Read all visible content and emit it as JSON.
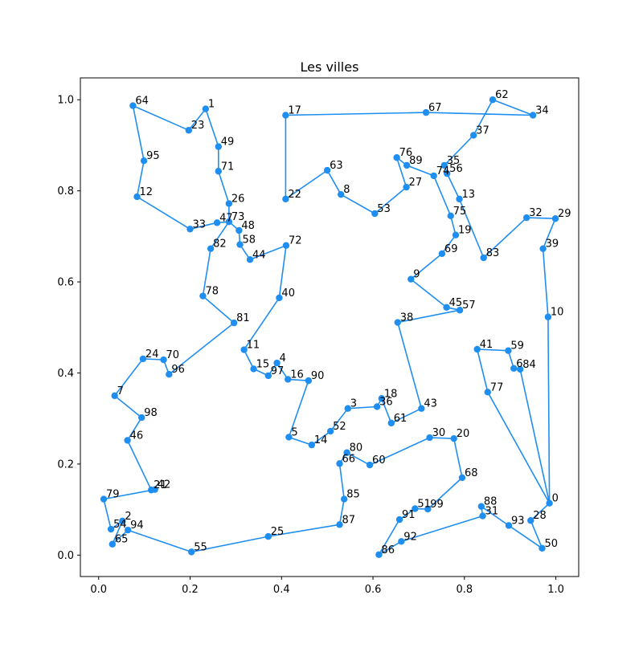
{
  "chart_data": {
    "type": "scatter",
    "title": "Les villes",
    "xlabel": "",
    "ylabel": "",
    "xlim": [
      -0.04,
      1.05
    ],
    "ylim": [
      -0.047,
      1.048
    ],
    "xticks": [
      0.0,
      0.2,
      0.4,
      0.6,
      0.8,
      1.0
    ],
    "yticks": [
      0.0,
      0.2,
      0.4,
      0.6,
      0.8,
      1.0
    ],
    "xtick_labels": [
      "0.0",
      "0.2",
      "0.4",
      "0.6",
      "0.8",
      "1.0"
    ],
    "ytick_labels": [
      "0.0",
      "0.2",
      "0.4",
      "0.6",
      "0.8",
      "1.0"
    ],
    "grid": false,
    "color": "#1f8ef1",
    "points": [
      {
        "id": "0",
        "x": 0.986,
        "y": 0.114
      },
      {
        "id": "1",
        "x": 0.234,
        "y": 0.98
      },
      {
        "id": "2",
        "x": 0.052,
        "y": 0.075
      },
      {
        "id": "4",
        "x": 0.39,
        "y": 0.422
      },
      {
        "id": "5",
        "x": 0.416,
        "y": 0.259
      },
      {
        "id": "6",
        "x": 0.908,
        "y": 0.41
      },
      {
        "id": "7",
        "x": 0.035,
        "y": 0.35
      },
      {
        "id": "8",
        "x": 0.53,
        "y": 0.792
      },
      {
        "id": "9",
        "x": 0.683,
        "y": 0.606
      },
      {
        "id": "10",
        "x": 0.983,
        "y": 0.523
      },
      {
        "id": "11",
        "x": 0.318,
        "y": 0.451
      },
      {
        "id": "12",
        "x": 0.084,
        "y": 0.787
      },
      {
        "id": "13",
        "x": 0.789,
        "y": 0.782
      },
      {
        "id": "14",
        "x": 0.466,
        "y": 0.242
      },
      {
        "id": "15",
        "x": 0.339,
        "y": 0.409
      },
      {
        "id": "16",
        "x": 0.414,
        "y": 0.386
      },
      {
        "id": "17",
        "x": 0.409,
        "y": 0.966
      },
      {
        "id": "18",
        "x": 0.619,
        "y": 0.344
      },
      {
        "id": "19",
        "x": 0.781,
        "y": 0.703
      },
      {
        "id": "20",
        "x": 0.777,
        "y": 0.256
      },
      {
        "id": "21",
        "x": 0.115,
        "y": 0.143
      },
      {
        "id": "22",
        "x": 0.409,
        "y": 0.782
      },
      {
        "id": "23",
        "x": 0.197,
        "y": 0.933
      },
      {
        "id": "24",
        "x": 0.097,
        "y": 0.431
      },
      {
        "id": "25",
        "x": 0.371,
        "y": 0.041
      },
      {
        "id": "26",
        "x": 0.285,
        "y": 0.772
      },
      {
        "id": "27",
        "x": 0.673,
        "y": 0.808
      },
      {
        "id": "28",
        "x": 0.945,
        "y": 0.076
      },
      {
        "id": "29",
        "x": 0.999,
        "y": 0.739
      },
      {
        "id": "30",
        "x": 0.724,
        "y": 0.258
      },
      {
        "id": "31",
        "x": 0.84,
        "y": 0.086
      },
      {
        "id": "32",
        "x": 0.936,
        "y": 0.741
      },
      {
        "id": "33",
        "x": 0.2,
        "y": 0.716
      },
      {
        "id": "34",
        "x": 0.95,
        "y": 0.966
      },
      {
        "id": "35",
        "x": 0.756,
        "y": 0.856
      },
      {
        "id": "36",
        "x": 0.609,
        "y": 0.326
      },
      {
        "id": "37",
        "x": 0.82,
        "y": 0.922
      },
      {
        "id": "38",
        "x": 0.654,
        "y": 0.511
      },
      {
        "id": "39",
        "x": 0.972,
        "y": 0.673
      },
      {
        "id": "40",
        "x": 0.395,
        "y": 0.565
      },
      {
        "id": "41",
        "x": 0.828,
        "y": 0.452
      },
      {
        "id": "42",
        "x": 0.123,
        "y": 0.144
      },
      {
        "id": "43",
        "x": 0.706,
        "y": 0.322
      },
      {
        "id": "44",
        "x": 0.331,
        "y": 0.649
      },
      {
        "id": "45",
        "x": 0.761,
        "y": 0.544
      },
      {
        "id": "46",
        "x": 0.063,
        "y": 0.252
      },
      {
        "id": "47",
        "x": 0.259,
        "y": 0.73
      },
      {
        "id": "48",
        "x": 0.307,
        "y": 0.713
      },
      {
        "id": "49",
        "x": 0.262,
        "y": 0.897
      },
      {
        "id": "50",
        "x": 0.97,
        "y": 0.015
      },
      {
        "id": "51",
        "x": 0.692,
        "y": 0.102
      },
      {
        "id": "52",
        "x": 0.507,
        "y": 0.272
      },
      {
        "id": "53",
        "x": 0.604,
        "y": 0.75
      },
      {
        "id": "54",
        "x": 0.027,
        "y": 0.057
      },
      {
        "id": "55",
        "x": 0.203,
        "y": 0.007
      },
      {
        "id": "56",
        "x": 0.762,
        "y": 0.838
      },
      {
        "id": "57",
        "x": 0.79,
        "y": 0.538
      },
      {
        "id": "58",
        "x": 0.309,
        "y": 0.682
      },
      {
        "id": "59",
        "x": 0.896,
        "y": 0.449
      },
      {
        "id": "60",
        "x": 0.593,
        "y": 0.198
      },
      {
        "id": "61",
        "x": 0.64,
        "y": 0.29
      },
      {
        "id": "62",
        "x": 0.862,
        "y": 1.0
      },
      {
        "id": "63",
        "x": 0.5,
        "y": 0.845
      },
      {
        "id": "64",
        "x": 0.075,
        "y": 0.987
      },
      {
        "id": "65",
        "x": 0.03,
        "y": 0.024
      },
      {
        "id": "66",
        "x": 0.527,
        "y": 0.201
      },
      {
        "id": "67",
        "x": 0.716,
        "y": 0.972
      },
      {
        "id": "68",
        "x": 0.795,
        "y": 0.17
      },
      {
        "id": "69",
        "x": 0.751,
        "y": 0.662
      },
      {
        "id": "70",
        "x": 0.142,
        "y": 0.429
      },
      {
        "id": "71",
        "x": 0.262,
        "y": 0.843
      },
      {
        "id": "72",
        "x": 0.41,
        "y": 0.68
      },
      {
        "id": "73",
        "x": 0.285,
        "y": 0.732
      },
      {
        "id": "74",
        "x": 0.733,
        "y": 0.833
      },
      {
        "id": "75",
        "x": 0.77,
        "y": 0.745
      },
      {
        "id": "76",
        "x": 0.652,
        "y": 0.873
      },
      {
        "id": "77",
        "x": 0.851,
        "y": 0.358
      },
      {
        "id": "78",
        "x": 0.228,
        "y": 0.569
      },
      {
        "id": "79",
        "x": 0.011,
        "y": 0.123
      },
      {
        "id": "80",
        "x": 0.543,
        "y": 0.225
      },
      {
        "id": "81",
        "x": 0.296,
        "y": 0.51
      },
      {
        "id": "82",
        "x": 0.245,
        "y": 0.673
      },
      {
        "id": "83",
        "x": 0.842,
        "y": 0.653
      },
      {
        "id": "84",
        "x": 0.922,
        "y": 0.408
      },
      {
        "id": "85",
        "x": 0.537,
        "y": 0.123
      },
      {
        "id": "86",
        "x": 0.613,
        "y": 0.001
      },
      {
        "id": "87",
        "x": 0.527,
        "y": 0.067
      },
      {
        "id": "88",
        "x": 0.837,
        "y": 0.107
      },
      {
        "id": "89",
        "x": 0.674,
        "y": 0.856
      },
      {
        "id": "90",
        "x": 0.459,
        "y": 0.383
      },
      {
        "id": "91",
        "x": 0.658,
        "y": 0.078
      },
      {
        "id": "92",
        "x": 0.662,
        "y": 0.03
      },
      {
        "id": "93",
        "x": 0.897,
        "y": 0.065
      },
      {
        "id": "94",
        "x": 0.064,
        "y": 0.055
      },
      {
        "id": "95",
        "x": 0.099,
        "y": 0.866
      },
      {
        "id": "96",
        "x": 0.154,
        "y": 0.397
      },
      {
        "id": "97",
        "x": 0.371,
        "y": 0.394
      },
      {
        "id": "98",
        "x": 0.094,
        "y": 0.302
      },
      {
        "id": "99",
        "x": 0.72,
        "y": 0.101
      },
      {
        "id": "3",
        "x": 0.545,
        "y": 0.322
      }
    ],
    "route": [
      "0",
      "10",
      "39",
      "29",
      "32",
      "83",
      "13",
      "56",
      "35",
      "37",
      "62",
      "34",
      "67",
      "17",
      "22",
      "63",
      "8",
      "53",
      "27",
      "76",
      "89",
      "74",
      "75",
      "19",
      "69",
      "9",
      "45",
      "57",
      "38",
      "43",
      "61",
      "18",
      "36",
      "3",
      "52",
      "14",
      "5",
      "90",
      "16",
      "4",
      "97",
      "15",
      "11",
      "40",
      "72",
      "44",
      "58",
      "48",
      "73",
      "47",
      "33",
      "12",
      "95",
      "64",
      "23",
      "1",
      "49",
      "71",
      "26",
      "73",
      "82",
      "78",
      "81",
      "96",
      "70",
      "24",
      "7",
      "98",
      "46",
      "21",
      "42",
      "79",
      "54",
      "2",
      "65",
      "94",
      "55",
      "25",
      "87",
      "85",
      "66",
      "80",
      "60",
      "30",
      "20",
      "68",
      "99",
      "51",
      "91",
      "86",
      "92",
      "31",
      "88",
      "93",
      "50",
      "28",
      "0",
      "84",
      "6",
      "59",
      "41",
      "77",
      "0"
    ]
  }
}
